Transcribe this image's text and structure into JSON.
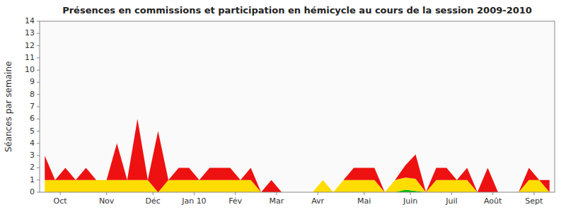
{
  "chart_data": {
    "type": "area",
    "stacked": true,
    "title": "Présences en commissions et participation en hémicycle au cours de la session 2009-2010",
    "y_label": "Séances par semaine",
    "x": [
      0,
      1,
      2,
      3,
      4,
      5,
      6,
      7,
      8,
      9,
      10,
      11,
      12,
      13,
      14,
      15,
      16,
      17,
      18,
      19,
      20,
      21,
      22,
      23,
      24,
      25,
      26,
      27,
      28,
      29,
      30,
      31,
      32,
      33,
      34,
      35,
      36,
      37,
      38,
      39,
      40,
      41,
      42,
      43,
      44,
      45,
      46,
      47,
      48,
      49
    ],
    "xlim": [
      -0.5,
      49.5
    ],
    "xticks": [
      {
        "value": 1.5,
        "label": "Oct"
      },
      {
        "value": 6,
        "label": "Nov"
      },
      {
        "value": 10.5,
        "label": "Déc"
      },
      {
        "value": 14.5,
        "label": "Jan 10"
      },
      {
        "value": 18.5,
        "label": "Fév"
      },
      {
        "value": 22.5,
        "label": "Mar"
      },
      {
        "value": 26.5,
        "label": "Avr"
      },
      {
        "value": 31,
        "label": "Mai"
      },
      {
        "value": 35.5,
        "label": "Juin"
      },
      {
        "value": 39.5,
        "label": "Juil"
      },
      {
        "value": 43.5,
        "label": "Août"
      },
      {
        "value": 47.5,
        "label": "Sept"
      }
    ],
    "ylim": [
      0,
      14
    ],
    "yticks": [
      0,
      1,
      2,
      3,
      4,
      5,
      6,
      7,
      8,
      9,
      10,
      11,
      12,
      13,
      14
    ],
    "grid": false,
    "series": [
      {
        "color": "#00bb00",
        "values": [
          0,
          0,
          0,
          0,
          0,
          0,
          0,
          0,
          0,
          0,
          0,
          0,
          0,
          0,
          0,
          0,
          0,
          0,
          0,
          0,
          0,
          0,
          0,
          0,
          0,
          0,
          0,
          0,
          0,
          0,
          0,
          0,
          0,
          0,
          0,
          0.2,
          0.1,
          0,
          0,
          0,
          0,
          0,
          0,
          0,
          0,
          0,
          0,
          0,
          0,
          0
        ]
      },
      {
        "color": "#ffdd00",
        "values": [
          1,
          1,
          1,
          1,
          1,
          1,
          1,
          1,
          1,
          1,
          1,
          0,
          1,
          1,
          1,
          1,
          1,
          1,
          1,
          1,
          1,
          0,
          0,
          0,
          0,
          0,
          0,
          1,
          0,
          1,
          1,
          1,
          1,
          0,
          1,
          1,
          1,
          0,
          1,
          1,
          1,
          1,
          0,
          0,
          0,
          0,
          0,
          1,
          1,
          0
        ]
      },
      {
        "color": "#ee1111",
        "values": [
          2,
          0,
          1,
          0,
          1,
          0,
          0,
          3,
          0,
          5,
          0,
          5,
          0,
          1,
          1,
          0,
          1,
          1,
          1,
          0,
          1,
          0,
          1,
          0,
          0,
          0,
          0,
          0,
          0,
          0,
          1,
          1,
          1,
          0,
          0,
          1,
          2,
          0,
          1,
          1,
          0,
          1,
          0,
          2,
          0,
          0,
          0,
          1,
          0,
          1
        ]
      }
    ]
  }
}
